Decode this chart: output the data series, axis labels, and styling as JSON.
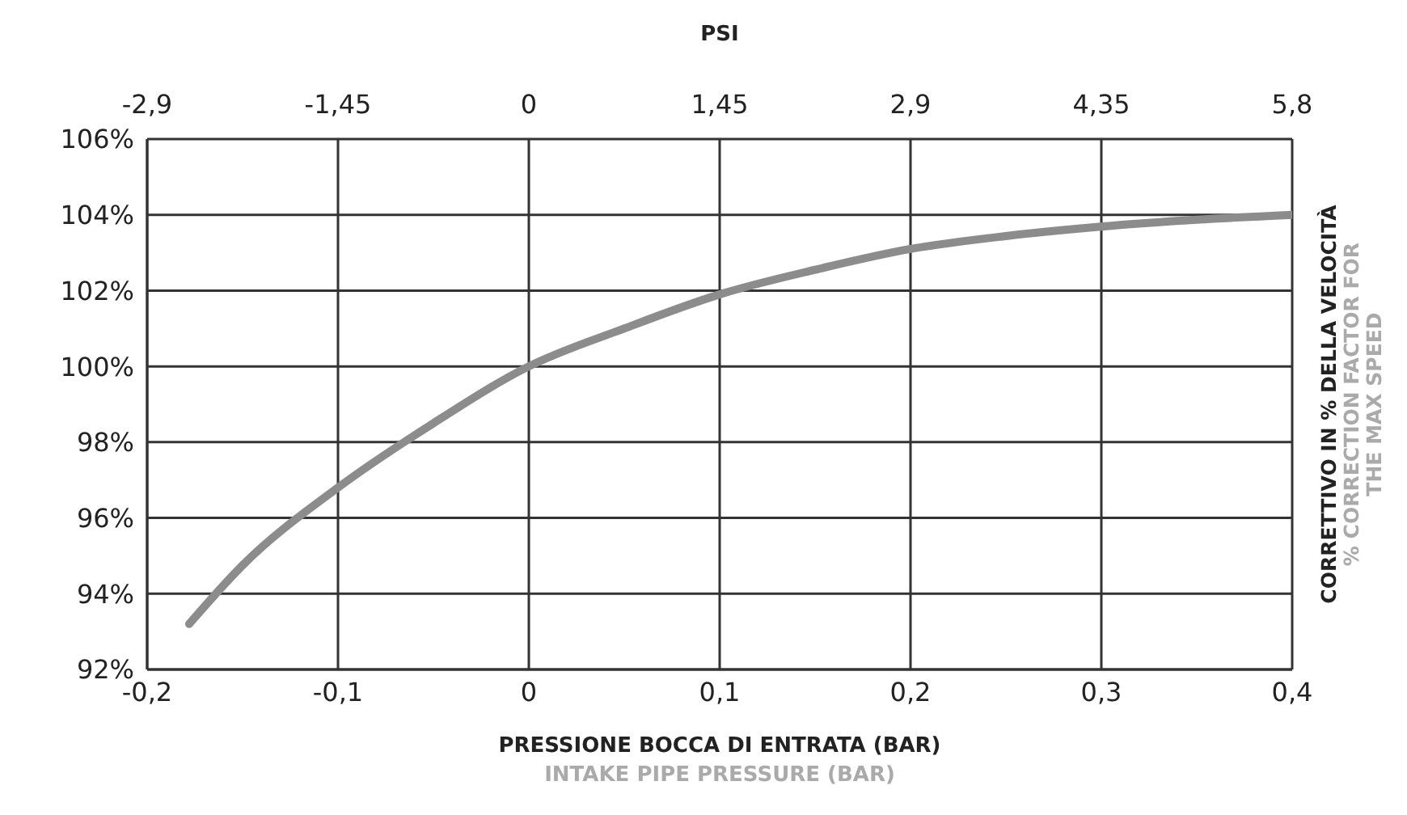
{
  "chart_data": {
    "type": "line",
    "xlabel": "PRESSIONE BOCCA DI ENTRATA (BAR)",
    "x2label": "PSI",
    "ylabel": "CORRETTIVO IN % DELLA VELOCITÀ",
    "annotations": [
      "INTAKE PIPE PRESSURE (BAR)",
      "% CORRECTION FACTOR FOR THE MAX SPEED"
    ],
    "x": [
      -0.178,
      -0.15,
      -0.1,
      -0.05,
      0,
      0.05,
      0.1,
      0.15,
      0.2,
      0.25,
      0.3,
      0.35,
      0.4
    ],
    "series": [
      {
        "color": "#8c8c8c",
        "values": [
          93.2,
          94.75,
          96.8,
          98.5,
          100.0,
          101.0,
          101.9,
          102.55,
          103.1,
          103.44,
          103.69,
          103.87,
          104.0
        ]
      }
    ],
    "xlim": [
      -0.2,
      0.4
    ],
    "xticks": [
      {
        "value": -0.2,
        "label": "-0,2"
      },
      {
        "value": -0.1,
        "label": "-0,1"
      },
      0,
      {
        "value": 0.1,
        "label": "0,1"
      },
      {
        "value": 0.2,
        "label": "0,2"
      },
      {
        "value": 0.3,
        "label": "0,3"
      },
      {
        "value": 0.4,
        "label": "0,4"
      }
    ],
    "x2lim": [
      -2.9,
      5.8
    ],
    "x2ticks": [
      {
        "value": -2.9,
        "label": "-2,9"
      },
      {
        "value": -1.45,
        "label": "-1,45"
      },
      0,
      {
        "value": 1.45,
        "label": "1,45"
      },
      {
        "value": 2.9,
        "label": "2,9"
      },
      {
        "value": 4.35,
        "label": "4,35"
      },
      {
        "value": 5.8,
        "label": "5,8"
      }
    ],
    "ylim": [
      92,
      106
    ],
    "yticks": [
      {
        "value": 92,
        "label": "92%"
      },
      {
        "value": 94,
        "label": "94%"
      },
      {
        "value": 96,
        "label": "96%"
      },
      {
        "value": 98,
        "label": "98%"
      },
      {
        "value": 100,
        "label": "100%"
      },
      {
        "value": 102,
        "label": "102%"
      },
      {
        "value": 104,
        "label": "104%"
      },
      {
        "value": 106,
        "label": "106%"
      }
    ],
    "grid": true,
    "marker": "none",
    "line_style": "solid"
  }
}
